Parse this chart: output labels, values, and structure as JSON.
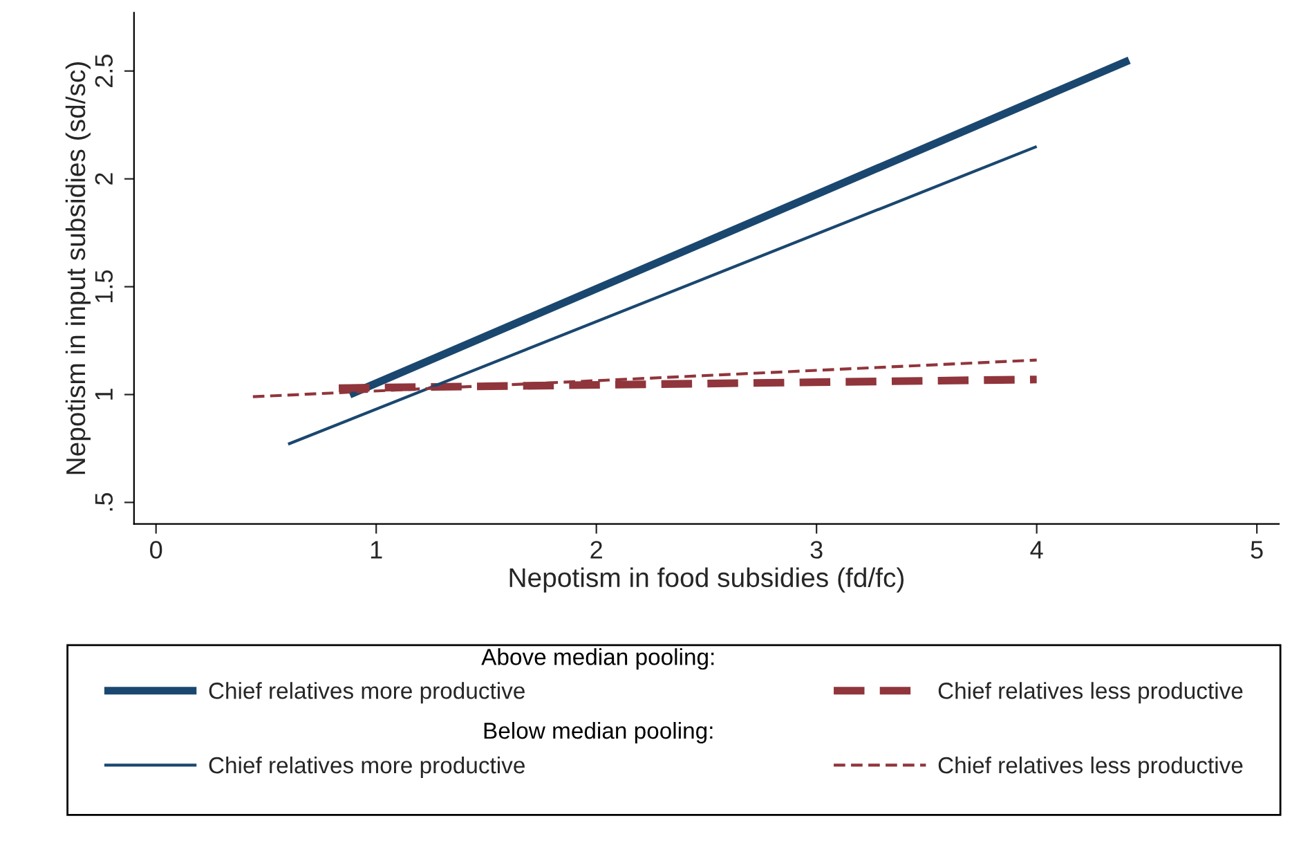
{
  "chart_data": {
    "type": "line",
    "xlabel": "Nepotism in food subsidies (fd/fc)",
    "ylabel": "Nepotism in input subsidies (sd/sc)",
    "annotations": [
      "Above median pooling:",
      "Below median pooling:"
    ],
    "series": [
      {
        "name": "Chief relatives more productive",
        "color": "#1a476f",
        "line_style": "solid",
        "x": [
          0.88,
          4.42
        ],
        "values": [
          1.0,
          2.55
        ]
      },
      {
        "name": "Chief relatives less productive",
        "color": "#90353b",
        "line_style": "dashed",
        "x": [
          0.83,
          4.0
        ],
        "values": [
          1.03,
          1.07
        ]
      },
      {
        "name": "Chief relatives more productive",
        "color": "#1a476f",
        "line_style": "solid",
        "x": [
          0.6,
          4.0
        ],
        "values": [
          0.77,
          2.15
        ]
      },
      {
        "name": "Chief relatives less productive",
        "color": "#90353b",
        "line_style": "dashed",
        "x": [
          0.44,
          4.0
        ],
        "values": [
          0.99,
          1.16
        ]
      }
    ],
    "xlim": [
      -0.1,
      5.1
    ],
    "xticks": [
      0,
      1,
      2,
      3,
      4,
      5
    ],
    "ylim": [
      0.4,
      2.77
    ],
    "yticks": [
      {
        "value": 0.5,
        "label": ".5"
      },
      1,
      1.5,
      2,
      2.5
    ],
    "legend": "bottom",
    "grid": false,
    "marker": "none"
  }
}
